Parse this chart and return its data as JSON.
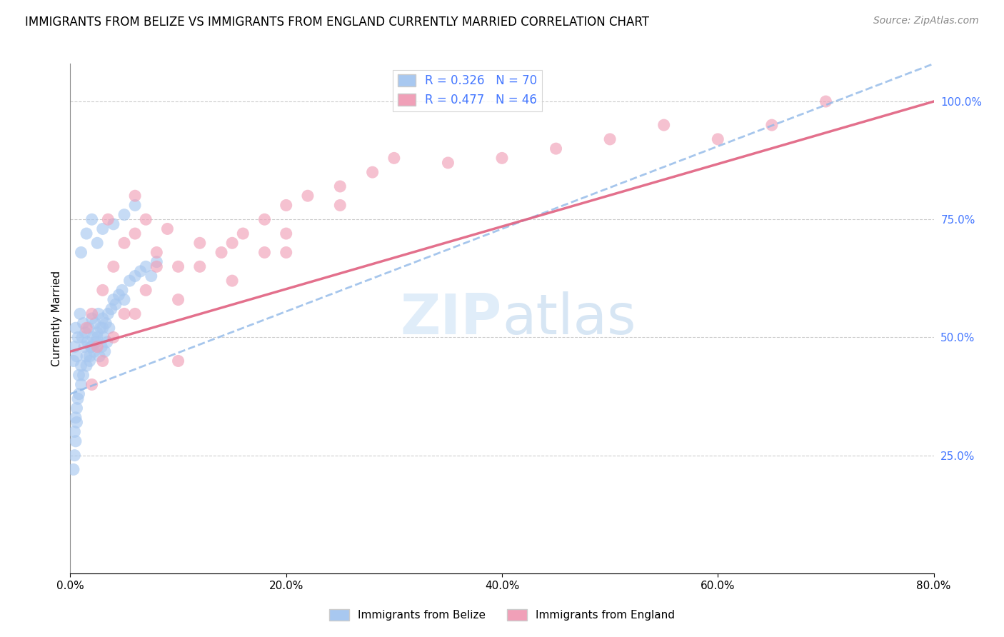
{
  "title": "IMMIGRANTS FROM BELIZE VS IMMIGRANTS FROM ENGLAND CURRENTLY MARRIED CORRELATION CHART",
  "source": "Source: ZipAtlas.com",
  "ylabel": "Currently Married",
  "xlim": [
    0.0,
    80.0
  ],
  "ylim": [
    0.0,
    108.0
  ],
  "xticks": [
    0.0,
    20.0,
    40.0,
    60.0,
    80.0
  ],
  "yticks_right": [
    25.0,
    50.0,
    75.0,
    100.0
  ],
  "r_belize": 0.326,
  "n_belize": 70,
  "r_england": 0.477,
  "n_england": 46,
  "color_belize": "#A8C8F0",
  "color_england": "#F0A0B8",
  "color_belize_line": "#90B8E8",
  "color_england_line": "#E06080",
  "legend_label_belize": "Immigrants from Belize",
  "legend_label_england": "Immigrants from England",
  "belize_x": [
    0.3,
    0.4,
    0.5,
    0.6,
    0.7,
    0.8,
    0.9,
    1.0,
    1.1,
    1.2,
    1.3,
    1.4,
    1.5,
    1.6,
    1.7,
    1.8,
    1.9,
    2.0,
    2.1,
    2.2,
    2.3,
    2.4,
    2.5,
    2.6,
    2.7,
    2.8,
    2.9,
    3.0,
    3.1,
    3.2,
    3.3,
    3.4,
    3.5,
    3.6,
    3.8,
    4.0,
    4.2,
    4.5,
    4.8,
    5.0,
    5.5,
    6.0,
    6.5,
    7.0,
    7.5,
    8.0,
    0.4,
    0.5,
    0.6,
    0.7,
    0.8,
    1.0,
    1.2,
    1.5,
    1.8,
    2.0,
    2.5,
    3.0,
    0.3,
    0.4,
    0.5,
    0.6,
    1.0,
    1.5,
    2.0,
    2.5,
    3.0,
    4.0,
    5.0,
    6.0
  ],
  "belize_y": [
    45,
    48,
    52,
    46,
    50,
    42,
    55,
    44,
    50,
    53,
    48,
    51,
    46,
    49,
    52,
    45,
    48,
    54,
    50,
    47,
    53,
    49,
    51,
    55,
    46,
    52,
    48,
    54,
    50,
    47,
    53,
    49,
    55,
    52,
    56,
    58,
    57,
    59,
    60,
    58,
    62,
    63,
    64,
    65,
    63,
    66,
    30,
    33,
    35,
    37,
    38,
    40,
    42,
    44,
    46,
    48,
    50,
    52,
    22,
    25,
    28,
    32,
    68,
    72,
    75,
    70,
    73,
    74,
    76,
    78
  ],
  "england_x": [
    1.5,
    2.0,
    2.5,
    3.0,
    4.0,
    5.0,
    6.0,
    7.0,
    8.0,
    9.0,
    10.0,
    12.0,
    14.0,
    16.0,
    18.0,
    20.0,
    22.0,
    25.0,
    28.0,
    30.0,
    35.0,
    40.0,
    45.0,
    50.0,
    55.0,
    60.0,
    65.0,
    70.0,
    3.0,
    5.0,
    7.0,
    10.0,
    12.0,
    15.0,
    18.0,
    20.0,
    25.0,
    3.5,
    6.0,
    8.0,
    2.0,
    4.0,
    6.0,
    10.0,
    15.0,
    20.0
  ],
  "england_y": [
    52,
    55,
    48,
    60,
    65,
    70,
    72,
    75,
    68,
    73,
    65,
    70,
    68,
    72,
    75,
    78,
    80,
    82,
    85,
    88,
    87,
    88,
    90,
    92,
    95,
    92,
    95,
    100,
    45,
    55,
    60,
    58,
    65,
    70,
    68,
    72,
    78,
    75,
    80,
    65,
    40,
    50,
    55,
    45,
    62,
    68
  ],
  "belize_line_x0": 0.0,
  "belize_line_y0": 38.0,
  "belize_line_x1": 80.0,
  "belize_line_y1": 108.0,
  "england_line_x0": 0.0,
  "england_line_y0": 47.0,
  "england_line_x1": 80.0,
  "england_line_y1": 100.0
}
